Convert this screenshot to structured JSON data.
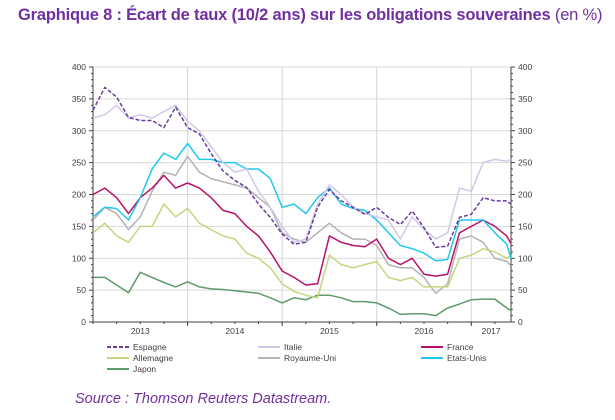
{
  "title": {
    "main": "Graphique 8 : Écart de taux (10/2 ans) sur les obligations souveraines",
    "unit": "(en %)"
  },
  "source": "Source : Thomson Reuters Datastream.",
  "chart_data": {
    "type": "line",
    "title": "Écart de taux (10/2 ans) sur les obligations souveraines",
    "xlabel": "",
    "ylabel": "",
    "ylim": [
      0,
      400
    ],
    "xlim": [
      2013.0,
      2017.42
    ],
    "yticks": [
      "0",
      "50",
      "100",
      "150",
      "200",
      "250",
      "300",
      "350",
      "400"
    ],
    "xtick_labels": [
      {
        "label": "2013",
        "center": 2013.5
      },
      {
        "label": "2014",
        "center": 2014.5
      },
      {
        "label": "2015",
        "center": 2015.5
      },
      {
        "label": "2016",
        "center": 2016.5
      },
      {
        "label": "2017",
        "center": 2017.21
      }
    ],
    "grid": true,
    "legend_placement": "bottom",
    "x": [
      2013.0,
      2013.125,
      2013.25,
      2013.375,
      2013.5,
      2013.625,
      2013.75,
      2013.875,
      2014.0,
      2014.125,
      2014.25,
      2014.375,
      2014.5,
      2014.625,
      2014.75,
      2014.875,
      2015.0,
      2015.125,
      2015.25,
      2015.375,
      2015.5,
      2015.625,
      2015.75,
      2015.875,
      2016.0,
      2016.125,
      2016.25,
      2016.375,
      2016.5,
      2016.625,
      2016.75,
      2016.875,
      2017.0,
      2017.125,
      2017.25,
      2017.375,
      2017.42
    ],
    "series": [
      {
        "name": "Espagne",
        "color": "#6a3d9a",
        "dash": true,
        "values": [
          332,
          368,
          353,
          321,
          316,
          316,
          305,
          337,
          305,
          295,
          264,
          237,
          222,
          211,
          185,
          164,
          138,
          122,
          125,
          180,
          208,
          190,
          180,
          169,
          180,
          164,
          153,
          174,
          148,
          117,
          119,
          164,
          169,
          195,
          190,
          190,
          185
        ]
      },
      {
        "name": "Italie",
        "color": "#cfc8e6",
        "dash": false,
        "values": [
          320,
          325,
          340,
          320,
          325,
          320,
          330,
          340,
          315,
          300,
          275,
          250,
          235,
          240,
          205,
          180,
          150,
          125,
          130,
          185,
          215,
          200,
          180,
          170,
          165,
          160,
          130,
          165,
          145,
          130,
          140,
          210,
          205,
          250,
          255,
          252,
          255
        ]
      },
      {
        "name": "France",
        "color": "#b5116b",
        "dash": false,
        "values": [
          200,
          210,
          195,
          170,
          195,
          210,
          230,
          210,
          218,
          210,
          195,
          175,
          170,
          150,
          135,
          110,
          80,
          70,
          58,
          60,
          135,
          125,
          120,
          118,
          130,
          100,
          90,
          100,
          75,
          72,
          75,
          140,
          150,
          160,
          150,
          135,
          123
        ]
      },
      {
        "name": "Allemagne",
        "color": "#c3d67f",
        "dash": false,
        "values": [
          140,
          155,
          135,
          125,
          150,
          150,
          185,
          165,
          178,
          155,
          145,
          135,
          130,
          108,
          100,
          85,
          60,
          48,
          42,
          38,
          105,
          90,
          85,
          90,
          95,
          70,
          65,
          70,
          55,
          55,
          55,
          100,
          105,
          115,
          110,
          100,
          105
        ]
      },
      {
        "name": "Royaume-Uni",
        "color": "#b3b3b3",
        "dash": false,
        "values": [
          160,
          180,
          170,
          145,
          165,
          205,
          235,
          230,
          260,
          235,
          225,
          220,
          215,
          210,
          195,
          180,
          140,
          130,
          125,
          140,
          155,
          140,
          130,
          130,
          120,
          90,
          85,
          85,
          70,
          45,
          60,
          130,
          135,
          125,
          100,
          95,
          88
        ]
      },
      {
        "name": "Etats-Unis",
        "color": "#1ec8f0",
        "dash": false,
        "values": [
          165,
          180,
          178,
          160,
          195,
          240,
          265,
          255,
          280,
          255,
          255,
          250,
          250,
          240,
          240,
          225,
          180,
          185,
          170,
          195,
          210,
          185,
          178,
          175,
          160,
          140,
          120,
          115,
          108,
          96,
          98,
          160,
          160,
          160,
          140,
          122,
          100
        ]
      },
      {
        "name": "Japon",
        "color": "#5f9a6a",
        "dash": false,
        "values": [
          70,
          70,
          58,
          46,
          78,
          70,
          62,
          55,
          63,
          55,
          52,
          51,
          49,
          47,
          45,
          38,
          30,
          38,
          35,
          42,
          42,
          38,
          32,
          32,
          30,
          22,
          12,
          13,
          13,
          10,
          22,
          28,
          35,
          36,
          36,
          22,
          18
        ]
      }
    ]
  }
}
